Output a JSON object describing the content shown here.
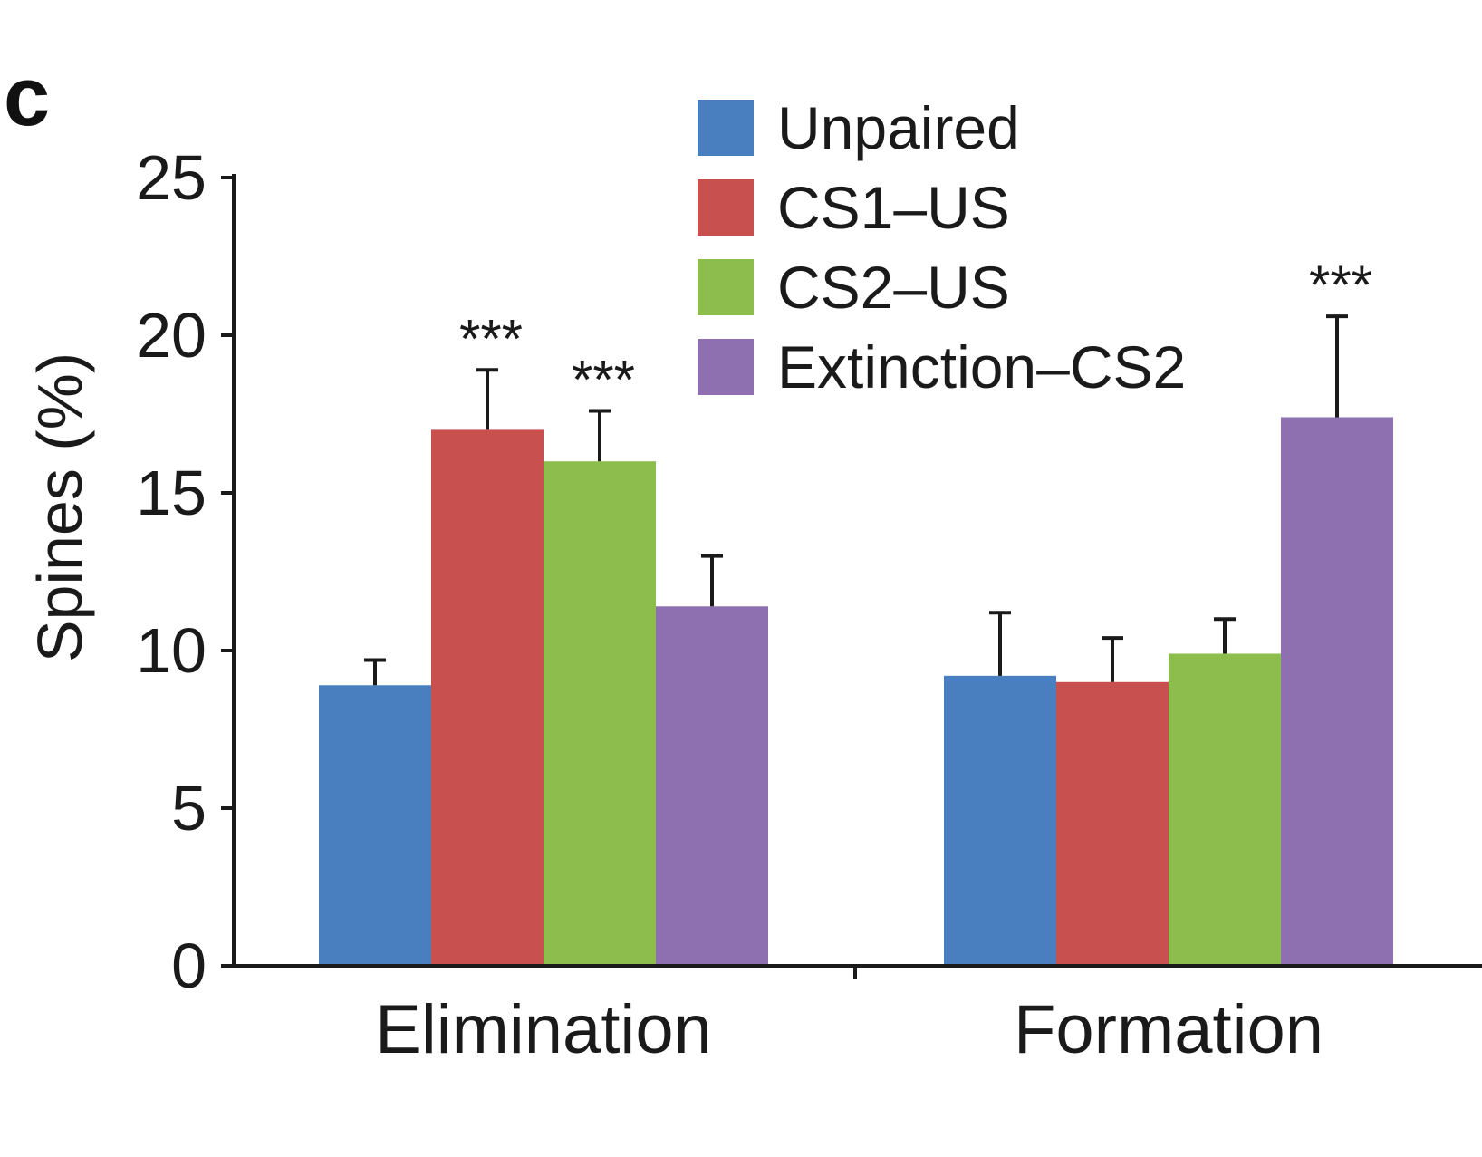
{
  "panel_label": "c",
  "chart_data": {
    "type": "bar",
    "title": "",
    "xlabel": "",
    "ylabel": "Spines (%)",
    "ylim": [
      0,
      25
    ],
    "yticks": [
      "0",
      "5",
      "10",
      "15",
      "20",
      "25"
    ],
    "categories": [
      "Elimination",
      "Formation"
    ],
    "legend_position": "top-right",
    "series": [
      {
        "name": "Unpaired",
        "color": "#4a7fbf",
        "values": [
          8.9,
          9.2
        ],
        "errors": [
          0.8,
          2.0
        ],
        "significance": [
          "",
          ""
        ]
      },
      {
        "name": "CS1–US",
        "color": "#c8504e",
        "values": [
          17.0,
          9.0
        ],
        "errors": [
          1.9,
          1.4
        ],
        "significance": [
          "***",
          ""
        ]
      },
      {
        "name": "CS2–US",
        "color": "#8dbd4c",
        "values": [
          16.0,
          9.9
        ],
        "errors": [
          1.6,
          1.1
        ],
        "significance": [
          "***",
          ""
        ]
      },
      {
        "name": "Extinction–CS2",
        "color": "#8e6fb0",
        "values": [
          11.4,
          17.4
        ],
        "errors": [
          1.6,
          3.2
        ],
        "significance": [
          "",
          "***"
        ]
      }
    ]
  }
}
